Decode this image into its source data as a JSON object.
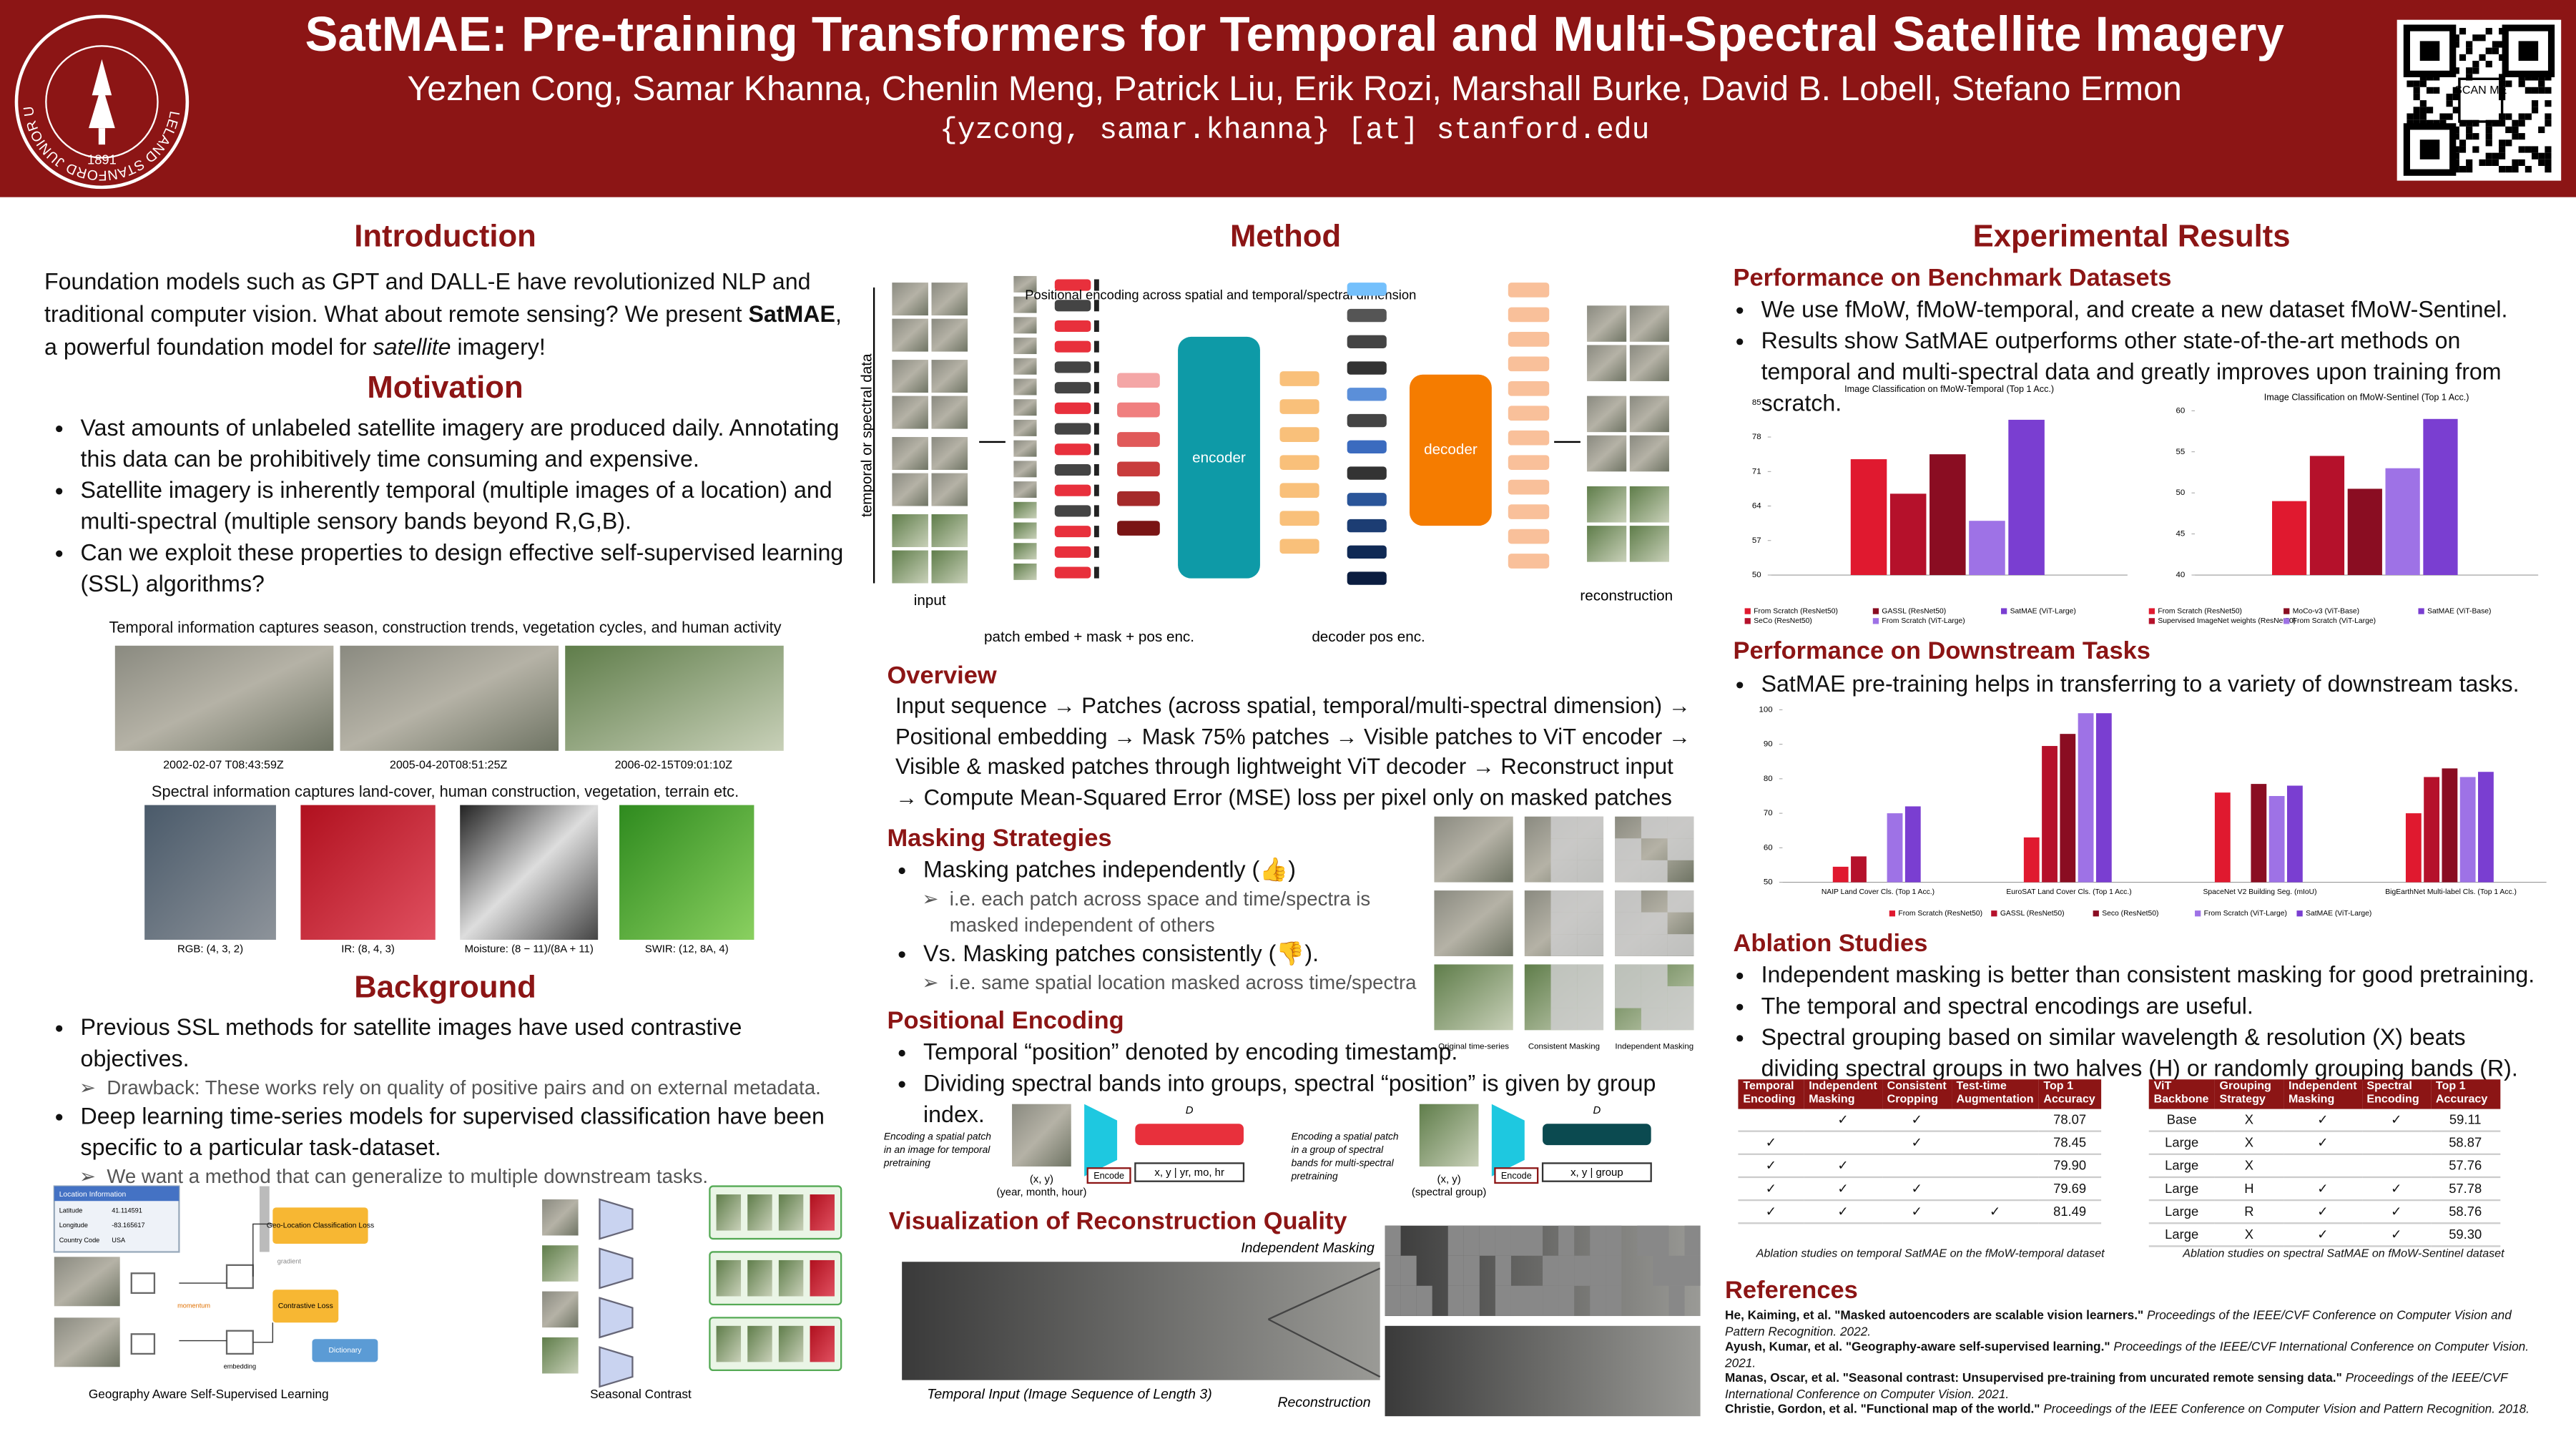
{
  "header": {
    "title": "SatMAE: Pre-training Transformers for Temporal and Multi-Spectral Satellite Imagery",
    "authors": "Yezhen Cong, Samar Khanna, Chenlin Meng, Patrick Liu, Erik Rozi, Marshall Burke, David B. Lobell, Stefano Ermon",
    "email": "{yzcong, samar.khanna} [at] stanford.edu",
    "logo_ring": "LELAND STANFORD JUNIOR UNIVERSITY",
    "logo_year": "1891",
    "qr_label": "SCAN ME"
  },
  "introduction": {
    "heading": "Introduction",
    "parts": [
      "Foundation models such as GPT and DALL-E have revolutionized NLP and traditional computer vision. What about remote sensing? We present ",
      "SatMAE",
      ", a powerful foundation model for ",
      "satellite",
      " imagery!"
    ]
  },
  "motivation": {
    "heading": "Motivation",
    "bullets": [
      "Vast amounts of unlabeled satellite imagery are produced daily. Annotating this data can be prohibitively time consuming and expensive.",
      "Satellite imagery is inherently temporal (multiple images of a location) and multi-spectral (multiple sensory bands beyond R,G,B).",
      "Can we exploit these properties to design effective self-supervised learning (SSL) algorithms?"
    ],
    "temporal_caption": "Temporal information captures season, construction trends, vegetation cycles, and human activity",
    "timestamps": [
      "2002-02-07 T08:43:59Z",
      "2005-04-20T08:51:25Z",
      "2006-02-15T09:01:10Z"
    ],
    "spectral_caption": "Spectral information captures land-cover, human construction, vegetation, terrain etc.",
    "bands": [
      "RGB: (4, 3, 2)",
      "IR: (8, 4, 3)",
      "Moisture: (8 − 11)/(8A + 11)",
      "SWIR: (12, 8A, 4)"
    ]
  },
  "background": {
    "heading": "Background",
    "items": [
      {
        "text": "Previous SSL methods for satellite images have used contrastive objectives.",
        "sub": "Drawback: These works rely on quality of positive pairs and on external metadata."
      },
      {
        "text": "Deep learning time-series models for supervised classification have been specific to a particular task-dataset.",
        "sub": "We want a method that can generalize to multiple downstream tasks."
      }
    ],
    "geo_figure": {
      "caption": "Geography Aware Self-Supervised Learning",
      "location_title": "Location Information",
      "location_rows": [
        [
          "Latitude",
          "41.114591"
        ],
        [
          "Longitude",
          "-83.165617"
        ],
        [
          "Country Code",
          "USA"
        ]
      ],
      "geo_loss": "Geo-Location Classification Loss",
      "contrastive_loss": "Contrastive Loss",
      "dictionary": "Dictionary",
      "momentum": "momentum",
      "gradient": "gradient",
      "embedding": "embedding"
    },
    "seasonal_caption": "Seasonal Contrast"
  },
  "method": {
    "heading": "Method",
    "axis_label": "temporal or spectral data",
    "input_label": "input",
    "pos_note": "Positional encoding across spatial and temporal/spectral dimension",
    "encoder": "encoder",
    "decoder": "decoder",
    "reconstruction": "reconstruction",
    "embed_label": "patch embed + mask + pos enc.",
    "decoder_label": "decoder pos enc."
  },
  "overview": {
    "heading": "Overview",
    "text": "Input sequence → Patches (across spatial, temporal/multi-spectral dimension) → Positional embedding → Mask 75% patches → Visible patches to ViT encoder → Visible & masked patches through lightweight ViT decoder → Reconstruct input → Compute Mean-Squared Error (MSE) loss per pixel only on masked patches"
  },
  "masking": {
    "heading": "Masking Strategies",
    "items": [
      {
        "text": "Masking patches independently (👍)",
        "sub": "i.e. each patch across space and time/spectra is masked independent of others"
      },
      {
        "text": "Vs. Masking patches consistently (👎).",
        "sub": "i.e. same spatial location masked across time/spectra"
      }
    ],
    "figure_columns": [
      "Original time-series",
      "Consistent Masking",
      "Independent Masking"
    ]
  },
  "positional": {
    "heading": "Positional Encoding",
    "bullets": [
      "Temporal “position” denoted by encoding timestamp.",
      "Dividing spectral bands into groups, spectral “position” is given by group index."
    ],
    "temporal": {
      "note": "Encoding a spatial patch in an image for temporal pretraining",
      "xy": "(x, y)",
      "meta": "(year, month, hour)",
      "encode": "Encode",
      "dim": "D",
      "vector": "x, y | yr, mo, hr"
    },
    "spectral": {
      "note": "Encoding a spatial patch in a group of spectral bands for multi-spectral pretraining",
      "xy": "(x, y)",
      "meta": "(spectral group)",
      "encode": "Encode",
      "dim": "D",
      "vector": "x, y | group"
    }
  },
  "visualization": {
    "heading": "Visualization of Reconstruction Quality",
    "input_caption": "Temporal Input (Image Sequence of Length 3)",
    "masking_label": "Independent Masking",
    "reconstruction_label": "Reconstruction"
  },
  "results": {
    "heading": "Experimental Results",
    "benchmark_heading": "Performance on Benchmark Datasets",
    "benchmark_bullets": [
      "We use fMoW, fMoW-temporal, and create a new dataset fMoW-Sentinel.",
      "Results show SatMAE outperforms other state-of-the-art methods on temporal and multi-spectral data and greatly improves upon training from scratch."
    ],
    "downstream_heading": "Performance on Downstream Tasks",
    "downstream_bullets": [
      "SatMAE pre-training helps in transferring to a variety of downstream tasks."
    ],
    "ablation_heading": "Ablation Studies",
    "ablation_bullets": [
      "Independent masking is better than consistent masking for good pretraining.",
      "The temporal and spectral encodings are useful.",
      "Spectral grouping based on similar wavelength & resolution (X) beats dividing spectral groups in two halves (H) or randomly grouping bands (R)."
    ]
  },
  "chart_data": [
    {
      "type": "bar",
      "title": "Image Classification on fMoW-Temporal (Top 1 Acc.)",
      "categories": [
        "From Scratch (ResNet50)",
        "SeCo (ResNet50)",
        "GASSL (ResNet50)",
        "From Scratch (ViT-Large)",
        "SatMAE (ViT-Large)"
      ],
      "values": [
        73.5,
        66.5,
        74.5,
        61,
        81.5
      ],
      "colors": [
        "#e0192f",
        "#b5112b",
        "#8a0d22",
        "#9e72e6",
        "#7a3ed1"
      ],
      "ylim": [
        50,
        85
      ],
      "yticks": [
        50,
        57,
        64,
        71,
        78,
        85
      ]
    },
    {
      "type": "bar",
      "title": "Image Classification on fMoW-Sentinel (Top 1 Acc.)",
      "categories": [
        "From Scratch (ResNet50)",
        "Supervised ImageNet weights (ResNet50)",
        "MoCo-v3 (ViT-Base)",
        "From Scratch (ViT-Large)",
        "SatMAE (ViT-Base)"
      ],
      "values": [
        49,
        54.5,
        50.5,
        53,
        59
      ],
      "colors": [
        "#e0192f",
        "#b5112b",
        "#8a0d22",
        "#9e72e6",
        "#7a3ed1"
      ],
      "ylim": [
        40,
        60
      ],
      "yticks": [
        40,
        45,
        50,
        55,
        60
      ]
    },
    {
      "type": "bar",
      "categories": [
        "NAIP Land Cover Cls. (Top 1 Acc.)",
        "EuroSAT Land Cover Cls. (Top 1 Acc.)",
        "SpaceNet V2 Building Seg. (mIoU)",
        "BigEarthNet Multi-label Cls. (Top 1 Acc.)"
      ],
      "series": [
        {
          "name": "From Scratch (ResNet50)",
          "color": "#e0192f",
          "values": [
            54.5,
            63,
            76,
            70
          ]
        },
        {
          "name": "GASSL (ResNet50)",
          "color": "#b5112b",
          "values": [
            57.5,
            89.5,
            null,
            80.5
          ]
        },
        {
          "name": "Seco (ResNet50)",
          "color": "#8a0d22",
          "values": [
            null,
            93,
            78.5,
            83
          ]
        },
        {
          "name": "From Scratch (ViT-Large)",
          "color": "#9e72e6",
          "values": [
            70,
            99,
            75,
            80.5
          ]
        },
        {
          "name": "SatMAE (ViT-Large)",
          "color": "#7a3ed1",
          "values": [
            72,
            99,
            78,
            82
          ]
        }
      ],
      "ylim": [
        50,
        100
      ],
      "yticks": [
        50,
        60,
        70,
        80,
        90,
        100
      ]
    }
  ],
  "ablation_tables": [
    {
      "header": [
        "Temporal Encoding",
        "Independent Masking",
        "Consistent Cropping",
        "Test-time Augmentation",
        "Top 1 Accuracy"
      ],
      "rows": [
        [
          null,
          "✓",
          "✓",
          null,
          "78.07"
        ],
        [
          "✓",
          null,
          "✓",
          null,
          "78.45"
        ],
        [
          "✓",
          "✓",
          null,
          null,
          "79.90"
        ],
        [
          "✓",
          "✓",
          "✓",
          null,
          "79.69"
        ],
        [
          "✓",
          "✓",
          "✓",
          "✓",
          "81.49"
        ]
      ],
      "caption": "Ablation studies on temporal SatMAE on the fMoW-temporal dataset"
    },
    {
      "header": [
        "ViT Backbone",
        "Grouping Strategy",
        "Independent Masking",
        "Spectral Encoding",
        "Top 1 Accuracy"
      ],
      "rows": [
        [
          "Base",
          "X",
          "✓",
          "✓",
          "59.11"
        ],
        [
          "Large",
          "X",
          "✓",
          null,
          "58.87"
        ],
        [
          "Large",
          "X",
          null,
          null,
          "57.76"
        ],
        [
          "Large",
          "H",
          "✓",
          "✓",
          "57.78"
        ],
        [
          "Large",
          "R",
          "✓",
          "✓",
          "58.76"
        ],
        [
          "Large",
          "X",
          "✓",
          "✓",
          "59.30"
        ]
      ],
      "caption": "Ablation studies on spectral SatMAE on fMoW-Sentinel dataset"
    }
  ],
  "references": {
    "heading": "References",
    "items": [
      {
        "bold": "He, Kaiming, et al. \"Masked autoencoders are scalable vision learners.\"",
        "rest": " Proceedings of the IEEE/CVF Conference on Computer Vision and Pattern Recognition. 2022."
      },
      {
        "bold": "Ayush, Kumar, et al. \"Geography-aware self-supervised learning.\"",
        "rest": " Proceedings of the IEEE/CVF International Conference on Computer Vision. 2021."
      },
      {
        "bold": "Manas, Oscar, et al. \"Seasonal contrast: Unsupervised pre-training from uncurated remote sensing data.\"",
        "rest": " Proceedings of the IEEE/CVF International Conference on Computer Vision. 2021."
      },
      {
        "bold": "Christie, Gordon, et al. \"Functional map of the world.\"",
        "rest": " Proceedings of the IEEE Conference on Computer Vision and Pattern Recognition. 2018."
      }
    ]
  }
}
